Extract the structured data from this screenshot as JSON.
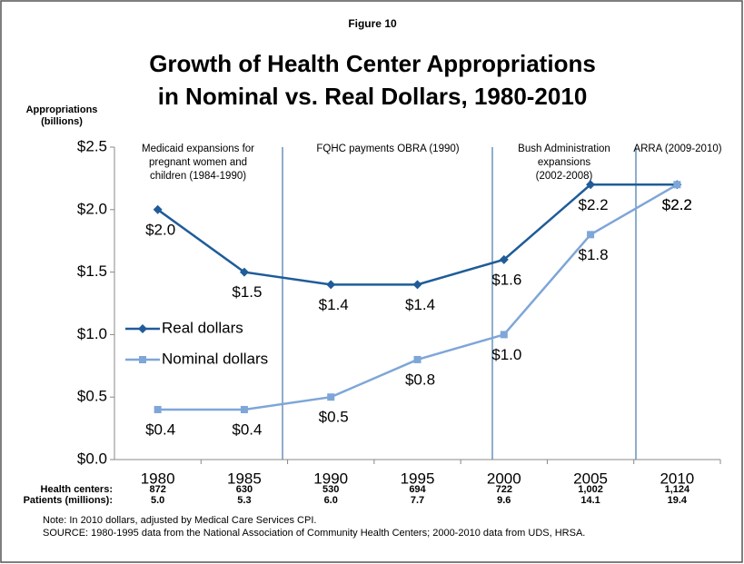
{
  "chart_data": {
    "type": "line",
    "figure_label": "Figure 10",
    "title": [
      "Growth of Health Center Appropriations",
      "in Nominal vs. Real Dollars, 1980-2010"
    ],
    "y_axis_label": [
      "Appropriations",
      "(billions)"
    ],
    "categories": [
      "1980",
      "1985",
      "1990",
      "1995",
      "2000",
      "2005",
      "2010"
    ],
    "series": [
      {
        "name": "Real dollars",
        "color": "#1f5c99",
        "marker": "diamond",
        "values": [
          2.0,
          1.5,
          1.4,
          1.4,
          1.6,
          2.2,
          2.2
        ],
        "value_labels": [
          "$2.0",
          "$1.5",
          "$1.4",
          "$1.4",
          "$1.6",
          "$2.2",
          "$2.2"
        ]
      },
      {
        "name": "Nominal dollars",
        "color": "#7ea6d8",
        "marker": "square",
        "values": [
          0.4,
          0.4,
          0.5,
          0.8,
          1.0,
          1.8,
          2.2
        ],
        "value_labels": [
          "$0.4",
          "$0.4",
          "$0.5",
          "$0.8",
          "$1.0",
          "$1.8",
          "$2.2"
        ]
      }
    ],
    "ylim": [
      0,
      2.5
    ],
    "yticks": [
      {
        "value": 0,
        "label": "$0.0"
      },
      {
        "value": 0.5,
        "label": "$0.5"
      },
      {
        "value": 1.0,
        "label": "$1.0"
      },
      {
        "value": 1.5,
        "label": "$1.5"
      },
      {
        "value": 2.0,
        "label": "$2.0"
      },
      {
        "value": 2.5,
        "label": "$2.5"
      }
    ],
    "legend": "left",
    "annotations": [
      [
        "Medicaid expansions for",
        "pregnant women and",
        "children (1984-1990)"
      ],
      [
        "FQHC payments OBRA (1990)"
      ],
      [
        "Bush Administration",
        "expansions",
        "(2002-2008)"
      ],
      [
        "ARRA (2009-2010)"
      ]
    ],
    "table": {
      "rows": [
        {
          "label": "Health centers:",
          "values": [
            "872",
            "630",
            "530",
            "694",
            "722",
            "1,002",
            "1,124"
          ]
        },
        {
          "label": "Patients (millions):",
          "values": [
            "5.0",
            "5.3",
            "6.0",
            "7.7",
            "9.6",
            "14.1",
            "19.4"
          ]
        }
      ]
    },
    "notes": [
      "Note: In 2010 dollars, adjusted by Medical Care Services CPI.",
      "SOURCE: 1980-1995 data from the National Association of Community Health Centers; 2000-2010 data from UDS, HRSA."
    ]
  }
}
